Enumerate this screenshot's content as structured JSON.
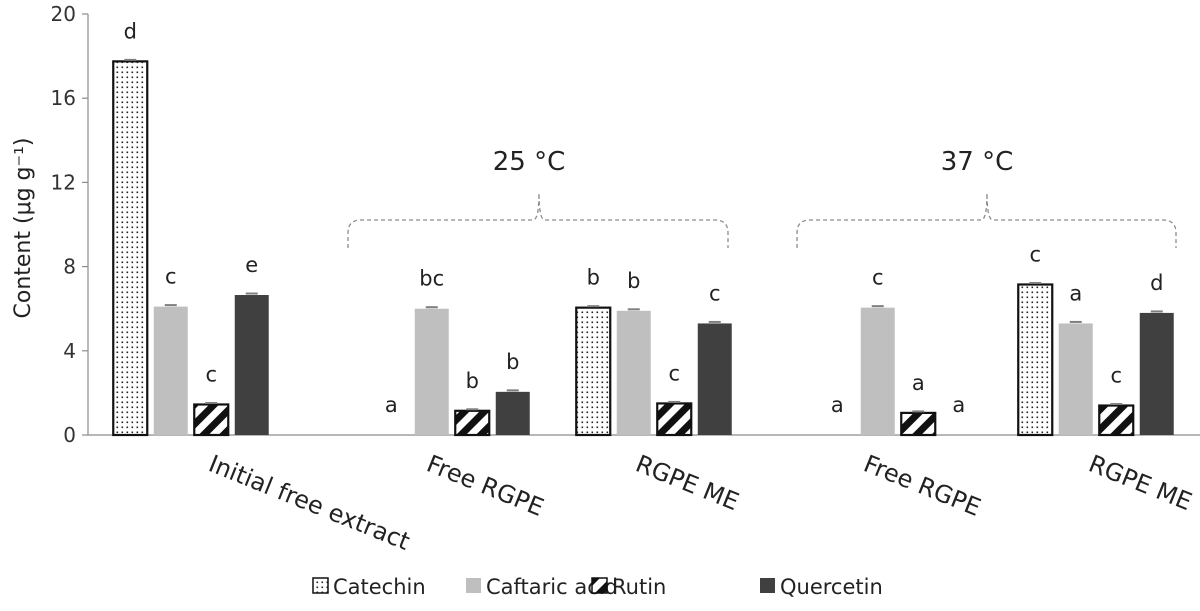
{
  "chart_data": {
    "type": "bar",
    "ylabel": "Content (μg g⁻¹)",
    "ylim": [
      0,
      20
    ],
    "yticks": [
      "0",
      "4",
      "8",
      "12",
      "16",
      "20"
    ],
    "categories": [
      "Initial free extract",
      "Free RGPE",
      "RGPE ME",
      "Free RGPE",
      "RGPE ME"
    ],
    "groups": [
      "25 °C",
      "37 °C"
    ],
    "series": [
      {
        "name": "Catechin",
        "pattern": "dots",
        "color": "#ffffff",
        "values": [
          17.75,
          0,
          6.05,
          0,
          7.15
        ],
        "letters": [
          "d",
          "a",
          "b",
          "a",
          "c"
        ]
      },
      {
        "name": "Caftaric acid",
        "pattern": "solid",
        "color": "#bfbfbf",
        "values": [
          6.1,
          6.0,
          5.9,
          6.05,
          5.3
        ],
        "letters": [
          "c",
          "bc",
          "b",
          "c",
          "a"
        ]
      },
      {
        "name": "Rutin",
        "pattern": "diagonal",
        "color": "#ffffff",
        "values": [
          1.45,
          1.15,
          1.5,
          1.05,
          1.4
        ],
        "letters": [
          "c",
          "b",
          "c",
          "a",
          "c"
        ]
      },
      {
        "name": "Quercetin",
        "pattern": "solid",
        "color": "#404040",
        "values": [
          6.65,
          2.05,
          5.3,
          0,
          5.8
        ],
        "letters": [
          "e",
          "b",
          "c",
          "a",
          "d"
        ]
      }
    ],
    "grid": false,
    "legend": "bottom"
  }
}
